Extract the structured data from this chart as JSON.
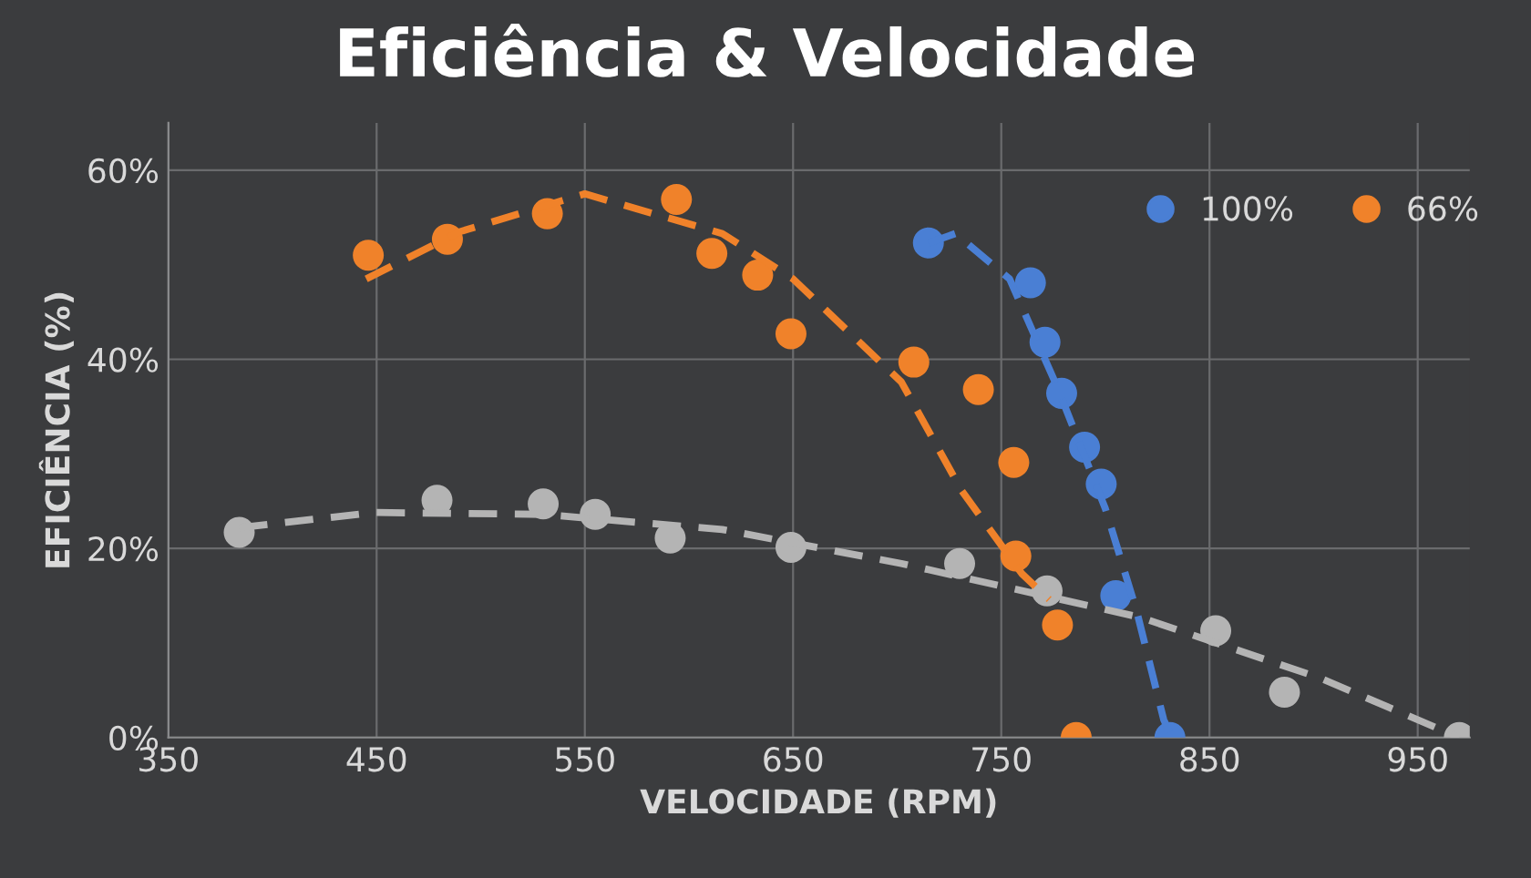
{
  "chart_data": {
    "type": "scatter",
    "title": "Eficiência & Velocidade",
    "xlabel": "VELOCIDADE (RPM)",
    "ylabel": "EFICIÊNCIA (%)",
    "xlim": [
      350,
      975
    ],
    "xticks": [
      350,
      450,
      550,
      650,
      750,
      850,
      950
    ],
    "ylim": [
      0,
      65
    ],
    "yticks": [
      {
        "value": 0,
        "label": "0%"
      },
      {
        "value": 20,
        "label": "20%"
      },
      {
        "value": 40,
        "label": "40%"
      },
      {
        "value": 60,
        "label": "60%"
      }
    ],
    "grid": true,
    "legend": "top right",
    "marker": "circle",
    "series": [
      {
        "name": "100%",
        "color": "#4a7fd4",
        "x": [
          715,
          764,
          771,
          779,
          790,
          798,
          805,
          831
        ],
        "values": [
          52.3,
          48.1,
          41.8,
          36.4,
          30.7,
          26.8,
          15.0,
          0
        ]
      },
      {
        "name": "66%",
        "color": "#f0822a",
        "x": [
          446,
          484,
          532,
          594,
          611,
          633,
          649,
          708,
          739,
          756,
          757,
          777,
          786
        ],
        "values": [
          51.0,
          52.7,
          55.4,
          56.9,
          51.2,
          48.9,
          42.7,
          39.7,
          36.8,
          29.1,
          19.2,
          11.9,
          0
        ]
      },
      {
        "color": "#b4b4b4",
        "x": [
          384,
          479,
          530,
          555,
          591,
          649,
          730,
          772,
          853,
          886,
          970
        ],
        "values": [
          21.7,
          25.1,
          24.7,
          23.6,
          21.1,
          20.1,
          18.4,
          15.5,
          11.3,
          4.8,
          0
        ]
      },
      {
        "type": "line",
        "line_style": "dashed",
        "marker": "none",
        "color": "#4a7fd4",
        "x": [
          715,
          728,
          754,
          777,
          800,
          815,
          828,
          832
        ],
        "values": [
          52.3,
          53.3,
          48.5,
          37,
          24.2,
          13.4,
          1.9,
          0
        ]
      },
      {
        "type": "line",
        "line_style": "dashed",
        "marker": "none",
        "color": "#f0822a",
        "x": [
          445,
          490,
          550,
          616,
          650,
          702,
          731,
          760,
          773
        ],
        "values": [
          48.5,
          53.5,
          57.5,
          53.3,
          48.5,
          37.6,
          26.1,
          17.3,
          14.6
        ]
      },
      {
        "type": "line",
        "line_style": "dashed",
        "marker": "none",
        "color": "#b4b4b4",
        "x": [
          384,
          449,
          530,
          616,
          702,
          817,
          903,
          970
        ],
        "values": [
          22.2,
          23.8,
          23.6,
          22,
          18.4,
          12.7,
          6.3,
          0
        ]
      }
    ]
  }
}
